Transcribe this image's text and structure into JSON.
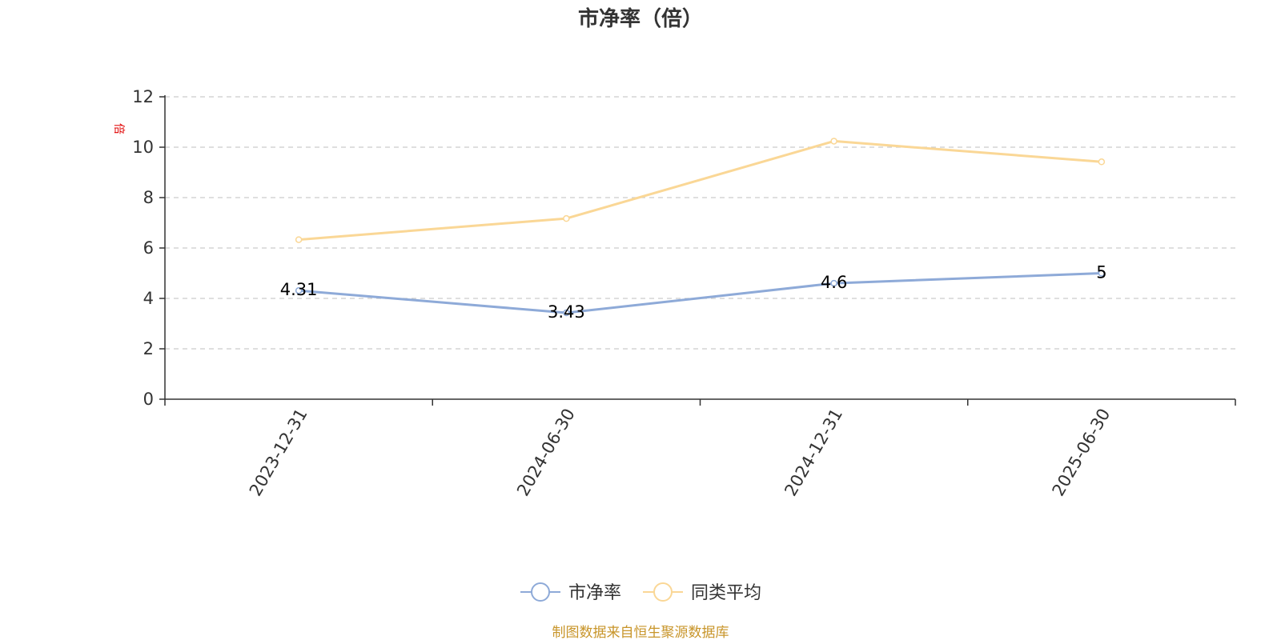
{
  "chart_data": {
    "type": "line",
    "title": "市净率（倍）",
    "ylabel": "倍",
    "xlabel": "",
    "categories": [
      "2023-12-31",
      "2024-06-30",
      "2024-12-31",
      "2025-06-30"
    ],
    "y_ticks": [
      "0",
      "2",
      "4",
      "6",
      "8",
      "10",
      "12"
    ],
    "ylim": [
      0,
      12
    ],
    "grid": true,
    "legend_position": "bottom-center",
    "series": [
      {
        "name": "市净率",
        "values": [
          4.31,
          3.43,
          4.6,
          5
        ],
        "labels": [
          "4.31",
          "3.43",
          "4.6",
          "5"
        ],
        "color": "#8eaad8",
        "show_labels": true
      },
      {
        "name": "同类平均",
        "values": [
          6.33,
          7.17,
          10.24,
          9.42
        ],
        "color": "#fad796",
        "show_labels": false
      }
    ]
  },
  "footer": {
    "source": "制图数据来自恒生聚源数据库"
  }
}
